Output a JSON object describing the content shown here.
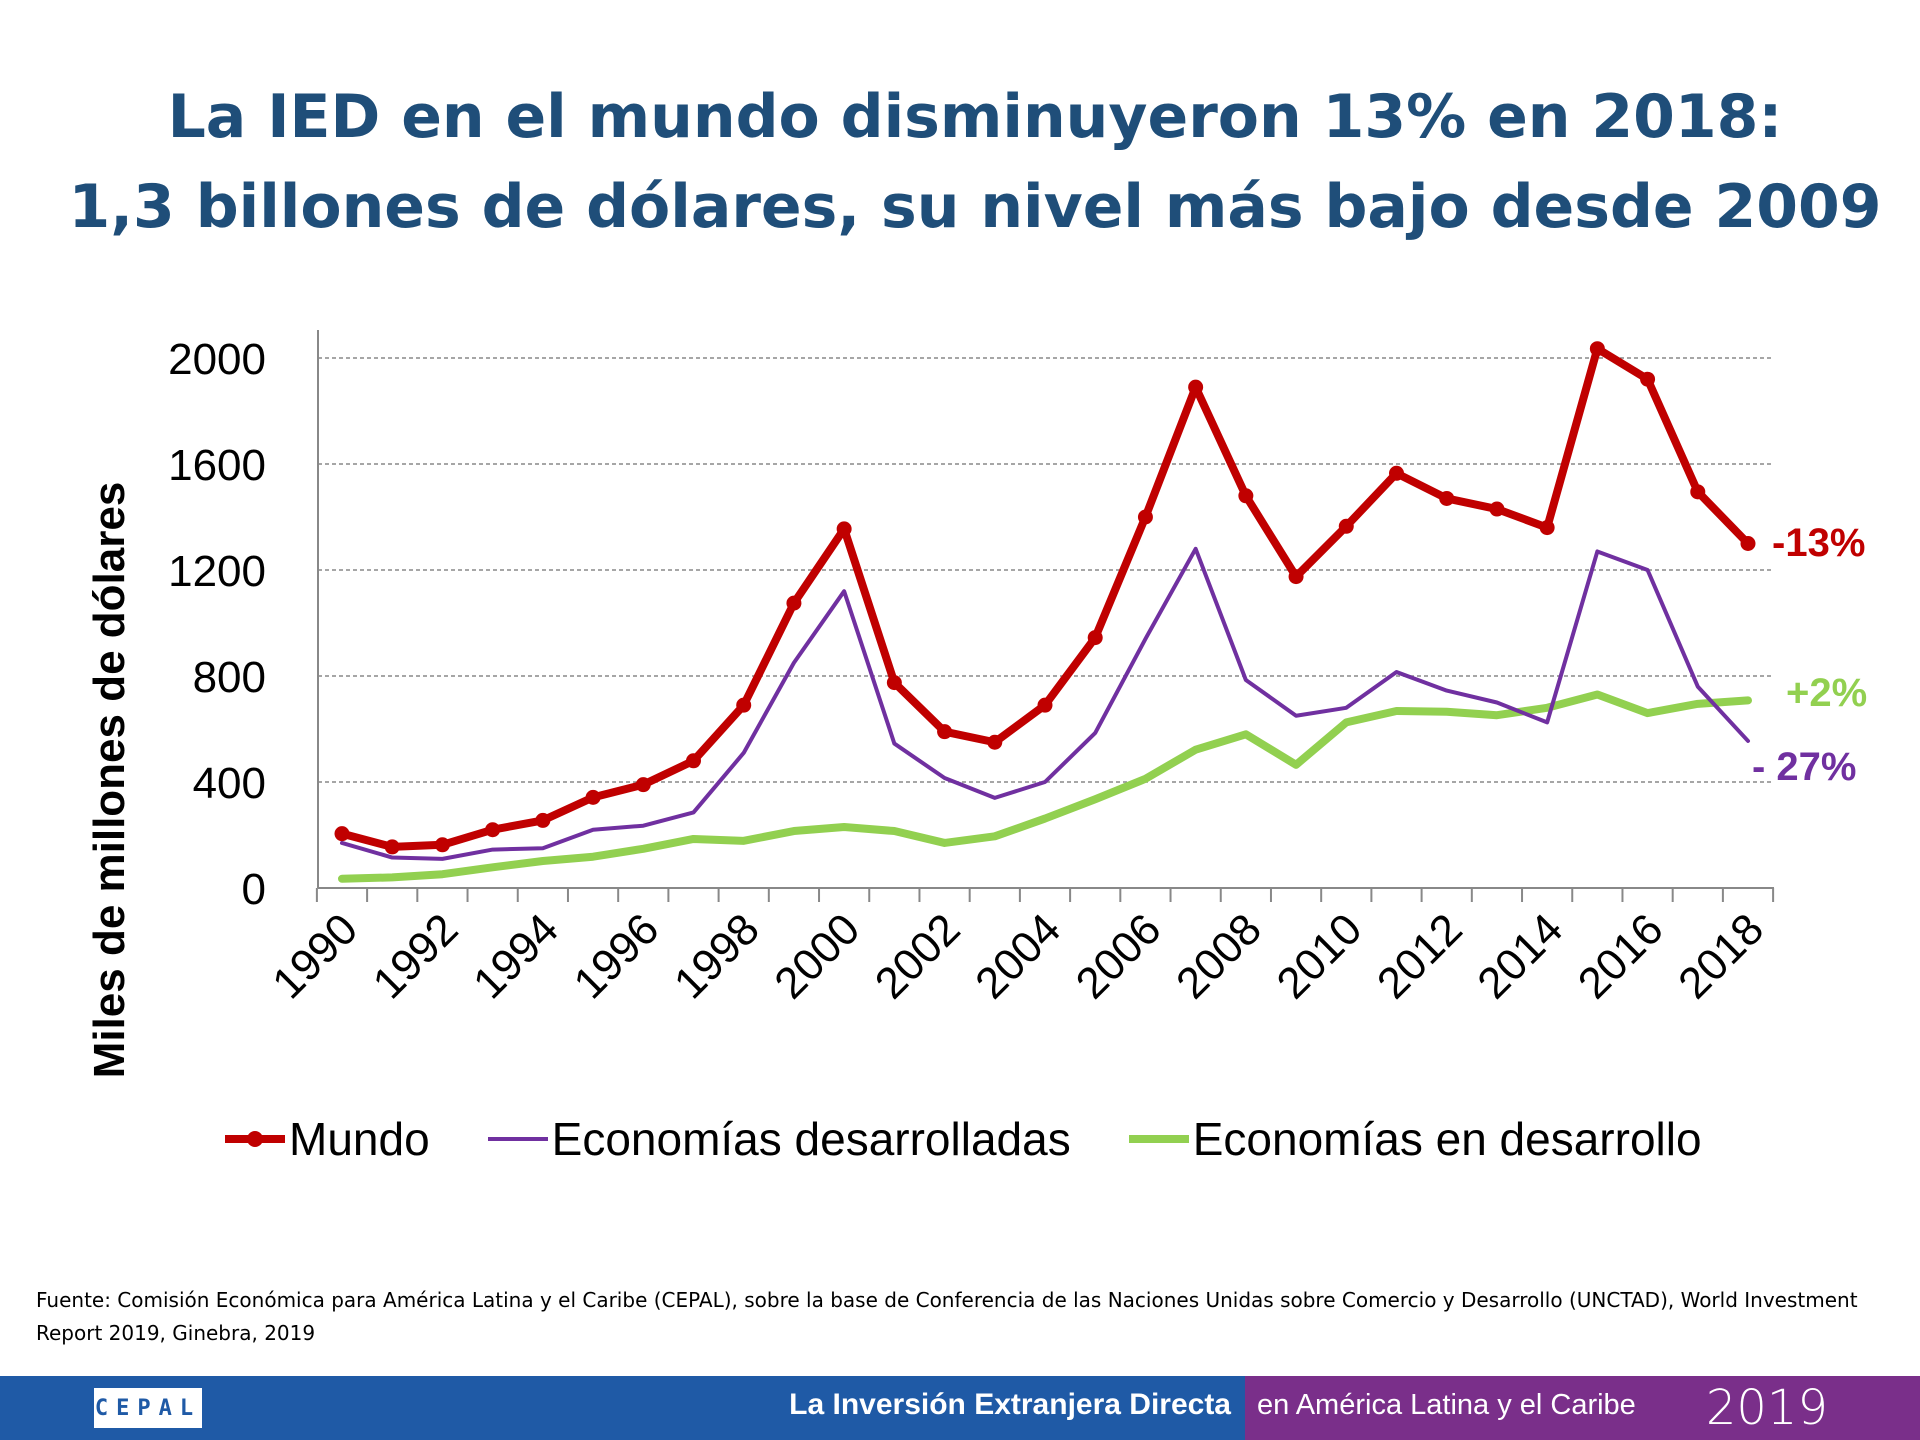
{
  "title": {
    "line1": "La IED en el mundo disminuyeron 13% en 2018:",
    "line2": "1,3 billones de dólares, su nivel más bajo desde 2009"
  },
  "chart_data": {
    "type": "line",
    "ylabel": "Miles de millones de dólares",
    "xlabel": "",
    "ylim": [
      0,
      2000
    ],
    "yticks": [
      0,
      400,
      800,
      1200,
      1600,
      2000
    ],
    "x": [
      1990,
      1991,
      1992,
      1993,
      1994,
      1995,
      1996,
      1997,
      1998,
      1999,
      2000,
      2001,
      2002,
      2003,
      2004,
      2005,
      2006,
      2007,
      2008,
      2009,
      2010,
      2011,
      2012,
      2013,
      2014,
      2015,
      2016,
      2017,
      2018
    ],
    "xtick_labels": [
      "1990",
      "1992",
      "1994",
      "1996",
      "1998",
      "2000",
      "2002",
      "2004",
      "2006",
      "2008",
      "2010",
      "2012",
      "2014",
      "2016",
      "2018"
    ],
    "grid": true,
    "legend_position": "bottom",
    "series": [
      {
        "name": "Mundo",
        "color": "#c00000",
        "markers": true,
        "values": [
          205,
          155,
          163,
          220,
          255,
          342,
          390,
          480,
          690,
          1075,
          1355,
          775,
          590,
          550,
          690,
          945,
          1400,
          1890,
          1480,
          1175,
          1365,
          1565,
          1470,
          1430,
          1360,
          2035,
          1920,
          1495,
          1300
        ],
        "end_label": "-13%"
      },
      {
        "name": "Economías desarrolladas",
        "color": "#7030a0",
        "markers": false,
        "values": [
          170,
          115,
          110,
          145,
          150,
          220,
          235,
          285,
          510,
          850,
          1120,
          545,
          415,
          340,
          400,
          585,
          940,
          1280,
          785,
          650,
          680,
          815,
          745,
          700,
          625,
          1270,
          1200,
          760,
          555
        ],
        "end_label": "- 27%"
      },
      {
        "name": "Economías en desarrollo",
        "color": "#92d050",
        "markers": false,
        "values": [
          35,
          40,
          52,
          78,
          102,
          118,
          148,
          185,
          178,
          215,
          230,
          215,
          170,
          195,
          262,
          335,
          412,
          522,
          580,
          465,
          625,
          668,
          665,
          652,
          680,
          730,
          660,
          695,
          708
        ],
        "end_label": "+2%"
      }
    ]
  },
  "source": "Fuente: Comisión Económica para América Latina y el Caribe (CEPAL), sobre la base de Conferencia de las Naciones Unidas sobre Comercio y Desarrollo (UNCTAD), World Investment Report 2019, Ginebra, 2019",
  "footer": {
    "logo": "CEPAL",
    "main": "La Inversión Extranjera Directa",
    "sub": "en América Latina y el Caribe",
    "year": "2019"
  }
}
